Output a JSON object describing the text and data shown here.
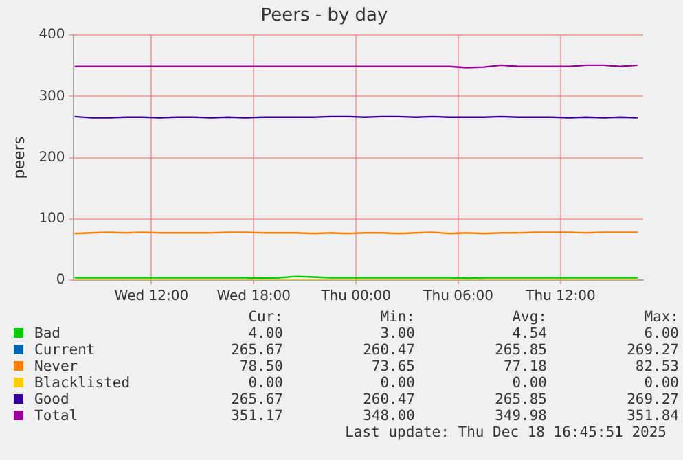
{
  "chart_data": {
    "type": "line",
    "title": "Peers - by day",
    "ylabel": "peers",
    "x": [
      "2025-12-17T07:30",
      "2025-12-17T08:30",
      "2025-12-17T09:30",
      "2025-12-17T10:30",
      "2025-12-17T11:30",
      "2025-12-17T12:30",
      "2025-12-17T13:30",
      "2025-12-17T14:30",
      "2025-12-17T15:30",
      "2025-12-17T16:30",
      "2025-12-17T17:30",
      "2025-12-17T18:30",
      "2025-12-17T19:30",
      "2025-12-17T20:30",
      "2025-12-17T21:30",
      "2025-12-17T22:30",
      "2025-12-17T23:30",
      "2025-12-18T00:30",
      "2025-12-18T01:30",
      "2025-12-18T02:30",
      "2025-12-18T03:30",
      "2025-12-18T04:30",
      "2025-12-18T05:30",
      "2025-12-18T06:30",
      "2025-12-18T07:30",
      "2025-12-18T08:30",
      "2025-12-18T09:30",
      "2025-12-18T10:30",
      "2025-12-18T11:30",
      "2025-12-18T12:30",
      "2025-12-18T13:30",
      "2025-12-18T14:30",
      "2025-12-18T15:30",
      "2025-12-18T16:30"
    ],
    "xlim": [
      "2025-12-17T07:25",
      "2025-12-18T16:50"
    ],
    "xticks": [
      {
        "value": "2025-12-17T12:00",
        "label": "Wed 12:00"
      },
      {
        "value": "2025-12-17T18:00",
        "label": "Wed 18:00"
      },
      {
        "value": "2025-12-18T00:00",
        "label": "Thu 00:00"
      },
      {
        "value": "2025-12-18T06:00",
        "label": "Thu 06:00"
      },
      {
        "value": "2025-12-18T12:00",
        "label": "Thu 12:00"
      }
    ],
    "ylim": [
      0,
      400
    ],
    "yticks": [
      0,
      100,
      200,
      300,
      400
    ],
    "grid": true,
    "legend": "bottom",
    "marker": "none",
    "line_style": "solid",
    "series": [
      {
        "name": "Bad",
        "color": "#00cc00",
        "values": [
          4,
          4,
          4,
          4,
          4,
          4,
          4,
          4,
          4,
          4,
          4,
          3,
          4,
          6,
          5,
          4,
          4,
          4,
          4,
          4,
          4,
          4,
          4,
          3,
          4,
          4,
          4,
          4,
          4,
          4,
          4,
          4,
          4,
          4
        ]
      },
      {
        "name": "Current",
        "color": "#0066b3",
        "values": [
          null,
          null,
          null,
          null,
          null,
          null,
          null,
          null,
          null,
          null,
          null,
          null,
          null,
          null,
          null,
          null,
          null,
          null,
          null,
          null,
          null,
          null,
          null,
          null,
          null,
          null,
          null,
          null,
          null,
          null,
          null,
          null,
          null,
          null
        ]
      },
      {
        "name": "Never",
        "color": "#ff8000",
        "values": [
          76,
          77,
          78,
          77,
          78,
          77,
          77,
          77,
          77,
          78,
          78,
          77,
          77,
          77,
          76,
          77,
          76,
          77,
          77,
          76,
          77,
          78,
          76,
          77,
          76,
          77,
          77,
          78,
          78,
          78,
          77,
          78,
          78,
          78
        ]
      },
      {
        "name": "Blacklisted",
        "color": "#ffcc00",
        "values": [
          0,
          0,
          0,
          0,
          0,
          0,
          0,
          0,
          0,
          0,
          0,
          0,
          0,
          0,
          0,
          0,
          0,
          0,
          0,
          0,
          0,
          0,
          0,
          0,
          0,
          0,
          0,
          0,
          0,
          0,
          0,
          0,
          0,
          0
        ]
      },
      {
        "name": "Good",
        "color": "#330099",
        "values": [
          267,
          265,
          265,
          266,
          266,
          265,
          266,
          266,
          265,
          266,
          265,
          266,
          266,
          266,
          266,
          267,
          267,
          266,
          267,
          267,
          266,
          267,
          266,
          266,
          266,
          267,
          266,
          266,
          266,
          265,
          266,
          265,
          266,
          265
        ]
      },
      {
        "name": "Total",
        "color": "#990099",
        "values": [
          349,
          349,
          349,
          349,
          349,
          349,
          349,
          349,
          349,
          349,
          349,
          349,
          349,
          349,
          349,
          349,
          349,
          349,
          349,
          349,
          349,
          349,
          349,
          347,
          348,
          351,
          349,
          349,
          349,
          349,
          351,
          351,
          349,
          351
        ]
      }
    ],
    "annotations": [
      "Cur:",
      "Min:",
      "Avg:",
      "Max:",
      "4.00",
      "3.00",
      "4.54",
      "6.00",
      "265.67",
      "260.47",
      "265.85",
      "269.27",
      "78.50",
      "73.65",
      "77.18",
      "82.53",
      "0.00",
      "0.00",
      "0.00",
      "0.00",
      "265.67",
      "260.47",
      "265.85",
      "269.27",
      "351.17",
      "348.00",
      "349.98",
      "351.84",
      "Last update: Thu Dec 18 16:45:51 2025"
    ]
  }
}
